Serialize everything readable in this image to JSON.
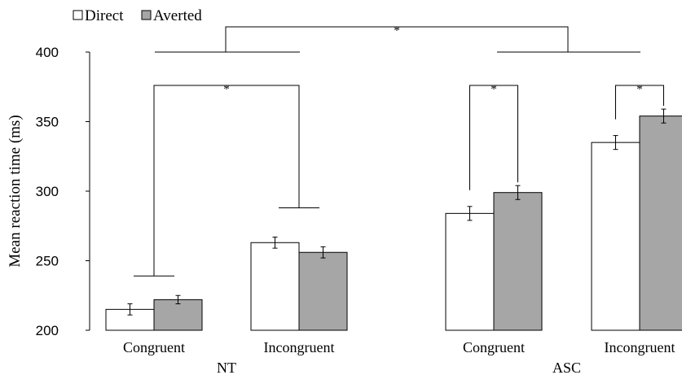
{
  "chart_data": {
    "type": "bar",
    "ylabel": "Mean  reaction time (ms)",
    "ylim": [
      200,
      400
    ],
    "yticks": [
      "200",
      "250",
      "300",
      "350",
      "400"
    ],
    "groups": [
      {
        "label": "NT",
        "categories": [
          "Congruent",
          "Incongruent"
        ]
      },
      {
        "label": "ASC",
        "categories": [
          "Congruent",
          "Incongruent"
        ]
      }
    ],
    "series": [
      {
        "name": "Direct",
        "fill": "#ffffff",
        "values": [
          215,
          263,
          284,
          335
        ],
        "errors": [
          4,
          4,
          5,
          5
        ]
      },
      {
        "name": "Averted",
        "fill": "#a6a6a6",
        "values": [
          222,
          256,
          299,
          354
        ],
        "errors": [
          3,
          4,
          5,
          5
        ]
      }
    ],
    "legend": [
      {
        "label": "Direct",
        "glyph": "□"
      },
      {
        "label": "Averted",
        "glyph": "■"
      }
    ],
    "significance_marker": "*",
    "grid": false,
    "legend_position": "top-left"
  }
}
